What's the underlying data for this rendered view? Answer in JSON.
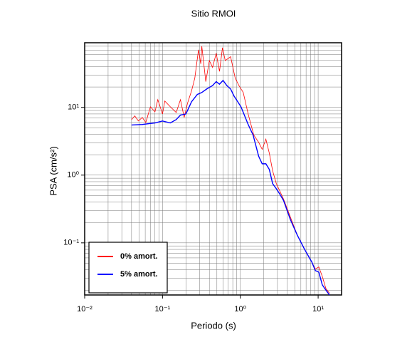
{
  "chart_data": {
    "type": "line",
    "title": "Sitio RMOI",
    "x_label": "Periodo (s)",
    "y_label": "PSA (cm/s²)",
    "log_x": true,
    "log_y": true,
    "grid": true,
    "legend": "lower left",
    "xlim": [
      0.01,
      20
    ],
    "ylim": [
      0.017,
      90
    ],
    "xticks": [
      {
        "value": 0.01,
        "label": "10⁻²"
      },
      {
        "value": 0.1,
        "label": "10⁻¹"
      },
      {
        "value": 1,
        "label": "10⁰"
      },
      {
        "value": 10,
        "label": "10¹"
      }
    ],
    "yticks": [
      {
        "value": 0.1,
        "label": "10⁻¹"
      },
      {
        "value": 1,
        "label": "10⁰"
      },
      {
        "value": 10,
        "label": "10¹"
      }
    ],
    "xminorticks": [
      0.02,
      0.03,
      0.04,
      0.05,
      0.06,
      0.07,
      0.08,
      0.09,
      0.2,
      0.3,
      0.4,
      0.5,
      0.6,
      0.7,
      0.8,
      0.9,
      2,
      3,
      4,
      5,
      6,
      7,
      8,
      9
    ],
    "yminorticks": [
      0.02,
      0.03,
      0.04,
      0.05,
      0.06,
      0.07,
      0.08,
      0.09,
      0.2,
      0.3,
      0.4,
      0.5,
      0.6,
      0.7,
      0.8,
      0.9,
      2,
      3,
      4,
      5,
      6,
      7,
      8,
      9,
      20,
      30,
      40,
      50,
      60,
      70,
      80,
      90
    ],
    "series": [
      {
        "name": "0% amort.",
        "color": "#ff0000",
        "x": [
          0.04,
          0.044,
          0.049,
          0.055,
          0.061,
          0.07,
          0.08,
          0.087,
          0.1,
          0.107,
          0.126,
          0.15,
          0.17,
          0.19,
          0.21,
          0.236,
          0.26,
          0.29,
          0.31,
          0.32,
          0.36,
          0.4,
          0.44,
          0.49,
          0.54,
          0.59,
          0.64,
          0.75,
          0.86,
          0.96,
          1.09,
          1.26,
          1.49,
          1.72,
          1.91,
          2.13,
          2.36,
          2.6,
          2.9,
          3.2,
          3.6,
          4.4,
          5.4,
          6.7,
          7.5,
          8.3,
          9.2,
          10.2,
          11.3,
          12.6,
          14
        ],
        "values": [
          6.6,
          7.5,
          6.3,
          7.1,
          6,
          10.2,
          8.6,
          13,
          8,
          12.4,
          10.2,
          8.4,
          13,
          7.1,
          11.6,
          17.5,
          27,
          71,
          44,
          80,
          24,
          49,
          39,
          63,
          34,
          76,
          49,
          56,
          27,
          21,
          16.6,
          8,
          3.9,
          3.05,
          2.4,
          3.4,
          2.1,
          1.16,
          0.75,
          0.59,
          0.44,
          0.24,
          0.13,
          0.08,
          0.063,
          0.052,
          0.041,
          0.044,
          0.032,
          0.021,
          0.018
        ]
      },
      {
        "name": "5% amort.",
        "color": "#0000ff",
        "x": [
          0.04,
          0.055,
          0.08,
          0.1,
          0.126,
          0.15,
          0.17,
          0.2,
          0.236,
          0.28,
          0.32,
          0.37,
          0.44,
          0.49,
          0.54,
          0.6,
          0.67,
          0.75,
          0.83,
          1.02,
          1.26,
          1.46,
          1.72,
          1.91,
          2.13,
          2.36,
          2.6,
          2.9,
          3.2,
          3.6,
          4.4,
          5.4,
          6.7,
          8.3,
          9.2,
          10.2,
          11.3,
          12.6,
          14
        ],
        "values": [
          5.5,
          5.6,
          5.9,
          6.3,
          5.9,
          6.6,
          7.7,
          8,
          12.1,
          15.5,
          16.6,
          18.7,
          21,
          24,
          22,
          25,
          21,
          18.7,
          14.7,
          10.2,
          5.6,
          3.9,
          1.9,
          1.47,
          1.47,
          1.21,
          0.75,
          0.63,
          0.53,
          0.42,
          0.22,
          0.13,
          0.08,
          0.052,
          0.039,
          0.037,
          0.024,
          0.02,
          0.017
        ]
      }
    ]
  }
}
